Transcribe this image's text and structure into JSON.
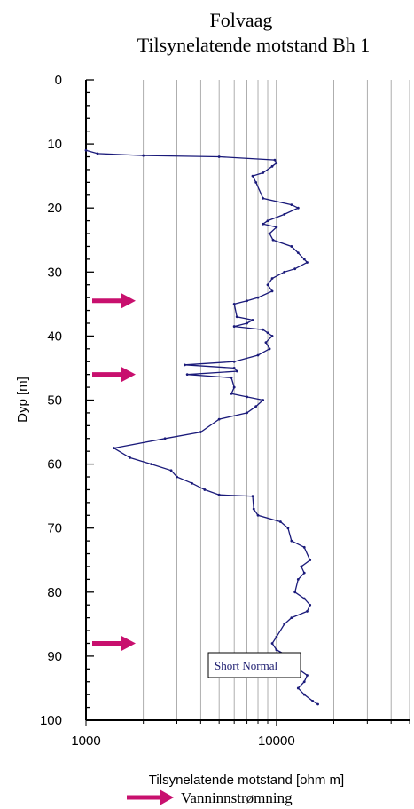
{
  "chart_data": {
    "type": "line",
    "title": "Folvaag",
    "subtitle": "Tilsynelatende motstand  Bh 1",
    "xlabel": "Tilsynelatende motstand [ohm m]",
    "ylabel": "Dyp  [m]",
    "x_scale": "log",
    "xlim": [
      1000,
      50000
    ],
    "ylim": [
      0,
      100
    ],
    "y_inverted": true,
    "x_tick_labels": [
      "1000",
      "10000"
    ],
    "y_tick_labels": [
      "0",
      "10",
      "20",
      "30",
      "40",
      "50",
      "60",
      "70",
      "80",
      "90",
      "100"
    ],
    "grid": true,
    "series": [
      {
        "name": "Short Normal",
        "color": "#1a1a7a",
        "points": [
          [
            1000,
            11
          ],
          [
            1150,
            11.5
          ],
          [
            2000,
            11.8
          ],
          [
            5000,
            12
          ],
          [
            9800,
            12.5
          ],
          [
            10000,
            13
          ],
          [
            9500,
            13.5
          ],
          [
            8500,
            14.5
          ],
          [
            7500,
            15
          ],
          [
            7800,
            16
          ],
          [
            8500,
            18.5
          ],
          [
            12000,
            19.5
          ],
          [
            13000,
            20
          ],
          [
            11000,
            21
          ],
          [
            9000,
            22
          ],
          [
            8500,
            22.5
          ],
          [
            10000,
            23
          ],
          [
            9200,
            24
          ],
          [
            9600,
            25
          ],
          [
            12000,
            26
          ],
          [
            13000,
            27
          ],
          [
            14000,
            28
          ],
          [
            14500,
            28.5
          ],
          [
            12500,
            29.5
          ],
          [
            11000,
            30
          ],
          [
            9500,
            31
          ],
          [
            9000,
            32
          ],
          [
            9500,
            33
          ],
          [
            8000,
            34
          ],
          [
            7000,
            34.5
          ],
          [
            6000,
            35
          ],
          [
            6200,
            37
          ],
          [
            7500,
            37.5
          ],
          [
            7000,
            38
          ],
          [
            6000,
            38.5
          ],
          [
            8500,
            39
          ],
          [
            9000,
            39.5
          ],
          [
            9500,
            40
          ],
          [
            8800,
            41
          ],
          [
            9200,
            42
          ],
          [
            8000,
            43
          ],
          [
            6000,
            44
          ],
          [
            3300,
            44.5
          ],
          [
            6000,
            45
          ],
          [
            6200,
            45.5
          ],
          [
            3400,
            46
          ],
          [
            5800,
            46.5
          ],
          [
            6000,
            48
          ],
          [
            5800,
            49
          ],
          [
            7000,
            49.5
          ],
          [
            8500,
            50
          ],
          [
            7800,
            51
          ],
          [
            7000,
            52
          ],
          [
            5000,
            53
          ],
          [
            4000,
            55
          ],
          [
            2600,
            56
          ],
          [
            1400,
            57.5
          ],
          [
            1700,
            59
          ],
          [
            2200,
            60
          ],
          [
            2800,
            61
          ],
          [
            3000,
            62
          ],
          [
            3600,
            63
          ],
          [
            4200,
            64
          ],
          [
            5000,
            64.8
          ],
          [
            7500,
            65
          ],
          [
            7600,
            67
          ],
          [
            8000,
            68
          ],
          [
            10500,
            69
          ],
          [
            11500,
            70
          ],
          [
            12000,
            72
          ],
          [
            14000,
            73
          ],
          [
            15000,
            75
          ],
          [
            13500,
            76
          ],
          [
            14000,
            77
          ],
          [
            13000,
            78
          ],
          [
            12500,
            80
          ],
          [
            14000,
            81
          ],
          [
            15000,
            82
          ],
          [
            14500,
            83
          ],
          [
            12000,
            84
          ],
          [
            11000,
            85
          ],
          [
            10000,
            87
          ],
          [
            9500,
            88
          ],
          [
            10000,
            89
          ],
          [
            11500,
            90
          ],
          [
            13000,
            92
          ],
          [
            14500,
            93
          ],
          [
            14000,
            94
          ],
          [
            13000,
            95
          ],
          [
            14000,
            96
          ],
          [
            15500,
            97
          ],
          [
            16500,
            97.5
          ]
        ]
      }
    ],
    "annotation": "Short Normal",
    "arrows_depths": [
      34.5,
      46,
      88
    ],
    "arrow_color": "#c8106e",
    "legend_label": "Vanninnstrømning"
  }
}
